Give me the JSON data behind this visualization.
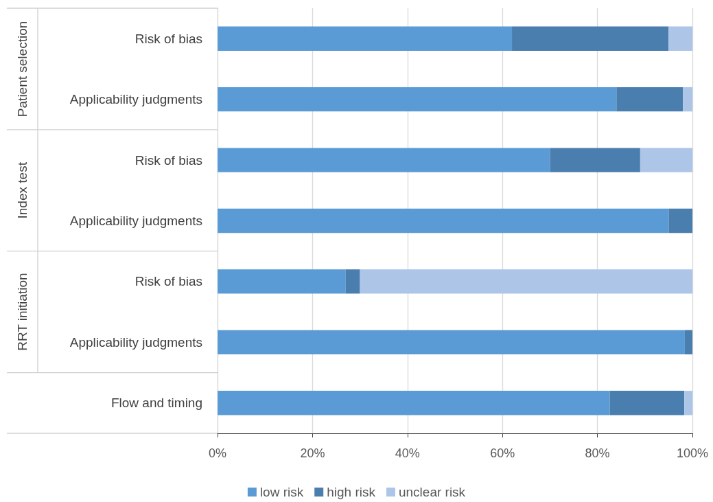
{
  "chart_data": {
    "type": "bar",
    "orientation": "horizontal",
    "stacked": true,
    "categories": [
      "Risk of bias",
      "Applicability judgments",
      "Risk of bias",
      "Applicability judgments",
      "Risk of bias",
      "Applicability judgments",
      "Flow and timing"
    ],
    "series": [
      {
        "name": "low risk",
        "color": "#5b9bd5",
        "values": [
          62,
          84,
          70,
          95,
          27,
          98.4,
          82.6
        ]
      },
      {
        "name": "high risk",
        "color": "#4a7eae",
        "values": [
          33,
          14,
          19,
          5,
          3,
          1.6,
          15.7
        ]
      },
      {
        "name": "unclear risk",
        "color": "#adc5e7",
        "values": [
          5,
          2,
          11,
          0,
          70,
          0,
          1.7
        ]
      }
    ],
    "xlim": [
      0,
      100
    ],
    "xticks": [
      {
        "value": 0,
        "label": "0%"
      },
      {
        "value": 20,
        "label": "20%"
      },
      {
        "value": 40,
        "label": "40%"
      },
      {
        "value": 60,
        "label": "60%"
      },
      {
        "value": 80,
        "label": "80%"
      },
      {
        "value": 100,
        "label": "100%"
      }
    ],
    "annotations": [
      "Patient selection",
      "Index test",
      "RRT initiation"
    ],
    "grid": "x",
    "legend": "bottom"
  }
}
